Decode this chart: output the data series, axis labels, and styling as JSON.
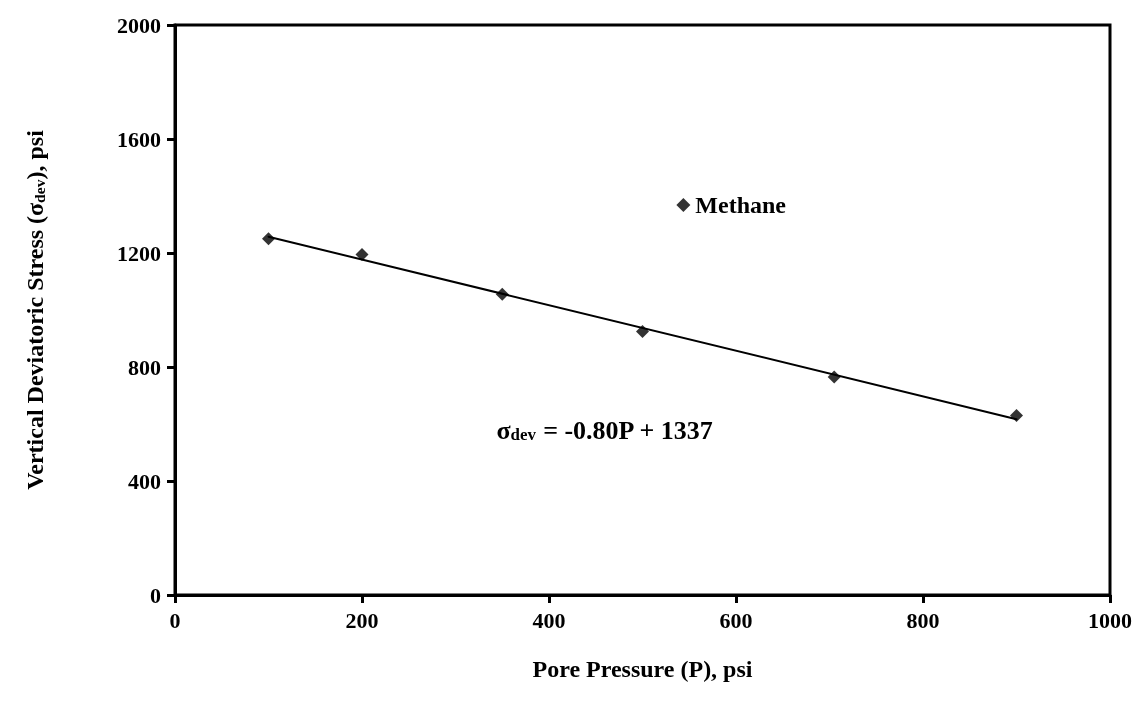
{
  "chart_data": {
    "type": "scatter",
    "xlabel": "Pore Pressure (P), psi",
    "ylabel": "Vertical Deviatoric Stress (σ$_{dev}$), psi",
    "x": [
      100,
      200,
      350,
      500,
      705,
      900
    ],
    "series": [
      {
        "name": "Methane",
        "color": "#000000",
        "values": [
          1250,
          1195,
          1055,
          925,
          765,
          630
        ],
        "marker": "diamond"
      },
      {
        "type": "line",
        "color": "#000000",
        "x": [
          100,
          900
        ],
        "values": [
          1257,
          617
        ],
        "marker": "none",
        "line_style": "solid"
      }
    ],
    "xlim": [
      0,
      1000
    ],
    "xticks": [
      0,
      200,
      400,
      600,
      800,
      1000
    ],
    "ylim": [
      0,
      2000
    ],
    "yticks": [
      0,
      400,
      800,
      1200,
      1600,
      2000
    ],
    "grid": false,
    "legend": "top right",
    "annotations": [
      "σ$_{dev}$ = -0.80P + 1337"
    ]
  }
}
